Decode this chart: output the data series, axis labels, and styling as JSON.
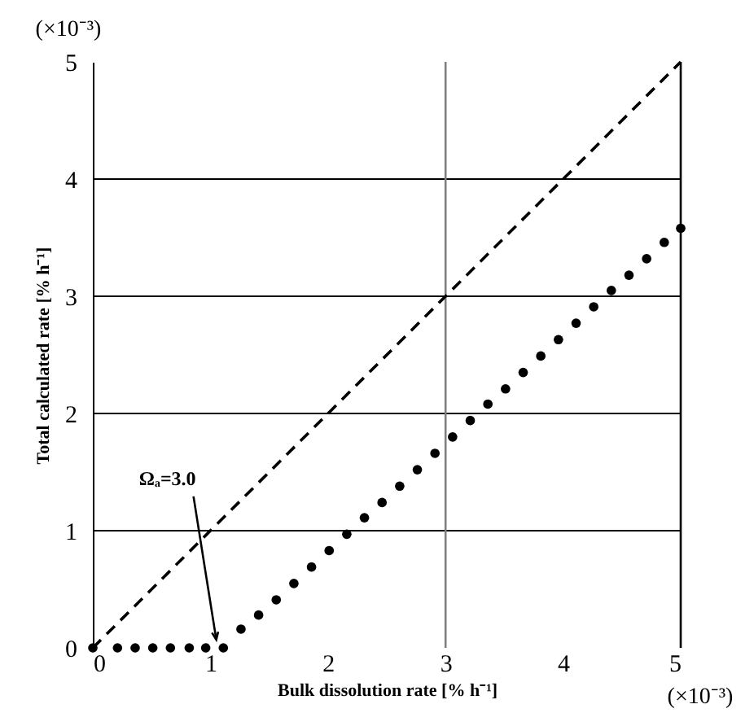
{
  "chart_data": {
    "type": "scatter",
    "xlabel": "Bulk dissolution rate [% h⁻¹]",
    "ylabel": "Total calculated rate [% h⁻¹]",
    "xlim": [
      0,
      5
    ],
    "ylim": [
      0,
      5
    ],
    "xticks": [
      0,
      1,
      2,
      3,
      4,
      5
    ],
    "yticks": [
      0,
      1,
      2,
      3,
      4,
      5
    ],
    "grid": "y",
    "ref_lines": [
      {
        "axis": "x",
        "value": 3,
        "color": "#808080"
      },
      {
        "axis": "x",
        "value": 5,
        "color": "#000000"
      }
    ],
    "annotations": [
      "(×10⁻³)",
      "(×10⁻³)",
      {
        "text": "Ωₐ=3.0",
        "x": 1.05,
        "y": 0.07
      }
    ],
    "series": [
      {
        "type": "line",
        "line_style": "dashed",
        "color": "#000000",
        "x": [
          0,
          5
        ],
        "values": [
          0,
          5
        ]
      },
      {
        "marker": "circle",
        "color": "#000000",
        "x": [
          0,
          0.21,
          0.36,
          0.51,
          0.66,
          0.82,
          0.96,
          1.11,
          1.26,
          1.41,
          1.56,
          1.71,
          1.86,
          2.01,
          2.16,
          2.31,
          2.46,
          2.61,
          2.76,
          2.91,
          3.06,
          3.21,
          3.36,
          3.51,
          3.66,
          3.81,
          3.96,
          4.11,
          4.26,
          4.41,
          4.56,
          4.71,
          4.86,
          5.0
        ],
        "values": [
          0,
          0,
          0,
          0,
          0,
          0,
          0,
          0,
          0.16,
          0.28,
          0.41,
          0.55,
          0.69,
          0.83,
          0.97,
          1.11,
          1.24,
          1.38,
          1.52,
          1.66,
          1.8,
          1.94,
          2.08,
          2.21,
          2.35,
          2.49,
          2.63,
          2.77,
          2.91,
          3.05,
          3.18,
          3.32,
          3.46,
          3.58
        ]
      }
    ]
  }
}
